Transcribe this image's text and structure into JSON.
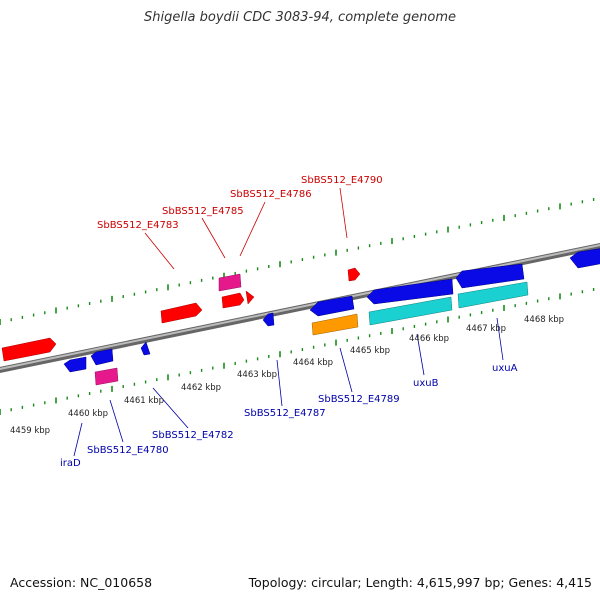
{
  "title": "Shigella boydii CDC 3083-94, complete genome",
  "footer": {
    "accession": "Accession: NC_010658",
    "summary": "Topology: circular; Length: 4,615,997 bp; Genes: 4,415"
  },
  "colors": {
    "forward_label": "#cc0000",
    "reverse_label": "#0000aa",
    "red_gene": "#ff0000",
    "blue_gene": "#0a0ae6",
    "pink_gene": "#e6198c",
    "cyan_gene": "#1ad0d0",
    "orange_gene": "#ff9900",
    "ticks": "#1a8a1a",
    "backbone": "#888888"
  },
  "scale_labels": [
    "4459 kbp",
    "4460 kbp",
    "4461 kbp",
    "4462 kbp",
    "4463 kbp",
    "4464 kbp",
    "4465 kbp",
    "4466 kbp",
    "4467 kbp",
    "4468 kbp"
  ],
  "forward_labels": [
    "SbBS512_E4783",
    "SbBS512_E4785",
    "SbBS512_E4786",
    "SbBS512_E4790"
  ],
  "reverse_labels": [
    "iraD",
    "SbBS512_E4780",
    "SbBS512_E4782",
    "SbBS512_E4787",
    "SbBS512_E4789",
    "uxuB",
    "uxuA"
  ]
}
